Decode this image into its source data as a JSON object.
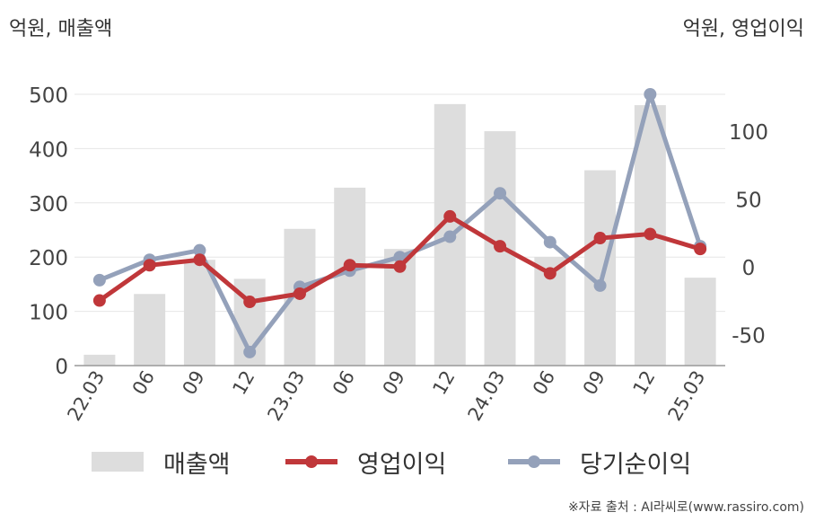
{
  "left_unit": "억원, 매출액",
  "right_unit": "억원, 영업이익",
  "source": "※자료 출처 : AI라씨로(www.rassiro.com)",
  "colors": {
    "bar": "#dddddd",
    "op": "#c0373a",
    "net": "#94a1ba",
    "axis": "#999999",
    "grid": "#e6e6e6"
  },
  "chart_data": {
    "type": "bar",
    "categories": [
      "22.03",
      "06",
      "09",
      "12",
      "23.03",
      "06",
      "09",
      "12",
      "24.03",
      "06",
      "09",
      "12",
      "25.03"
    ],
    "left_axis": {
      "ticks": [
        0,
        100,
        200,
        300,
        400,
        500
      ],
      "ylim": [
        0,
        500
      ]
    },
    "right_axis": {
      "ticks": [
        -50,
        0,
        50,
        100
      ],
      "ylim": [
        -73,
        127
      ]
    },
    "series": [
      {
        "name": "매출액",
        "type": "bar",
        "axis": "left",
        "values": [
          20,
          132,
          195,
          160,
          252,
          328,
          215,
          482,
          432,
          200,
          360,
          480,
          162
        ]
      },
      {
        "name": "영업이익",
        "type": "line",
        "axis": "right",
        "values": [
          -25,
          1,
          5,
          -26,
          -20,
          1,
          0,
          37,
          15,
          -5,
          21,
          24,
          13
        ]
      },
      {
        "name": "당기순이익",
        "type": "line",
        "axis": "right",
        "values": [
          -10,
          5,
          12,
          -63,
          -15,
          -3,
          7,
          22,
          54,
          18,
          -14,
          127,
          15
        ]
      }
    ]
  }
}
